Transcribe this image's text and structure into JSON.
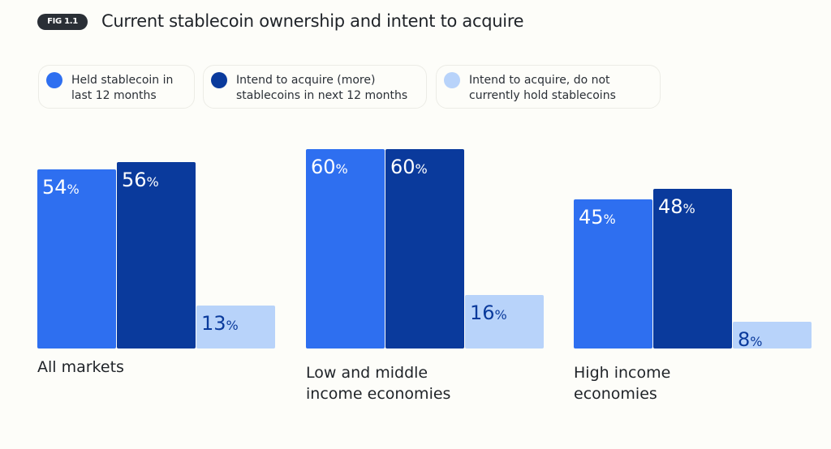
{
  "figure_label": "FIG 1.1",
  "chart_data": {
    "type": "bar",
    "title": "Current stablecoin ownership and intent to acquire",
    "categories": [
      "All markets",
      "Low and middle\nincome economies",
      "High income\neconomies"
    ],
    "series": [
      {
        "name": "Held stablecoin in last 12 months",
        "legend_lines": [
          "Held stablecoin in",
          "last 12 months"
        ],
        "color": "#2e6ff0",
        "label_color": "#ffffff",
        "values": [
          54,
          60,
          45
        ]
      },
      {
        "name": "Intend to acquire (more) stablecoins in next 12 months",
        "legend_lines": [
          "Intend to acquire (more)",
          "stablecoins in next 12 months"
        ],
        "color": "#0a3a9c",
        "label_color": "#ffffff",
        "values": [
          56,
          60,
          48
        ]
      },
      {
        "name": "Intend to acquire, do not currently hold stablecoins",
        "legend_lines": [
          "Intend to acquire, do not",
          "currently hold stablecoins"
        ],
        "color": "#b8d3fa",
        "label_color": "#0a3a9c",
        "values": [
          13,
          16,
          8
        ]
      }
    ],
    "unit": "%",
    "ylim": [
      0,
      60
    ],
    "grid": false,
    "legend_position": "top"
  }
}
